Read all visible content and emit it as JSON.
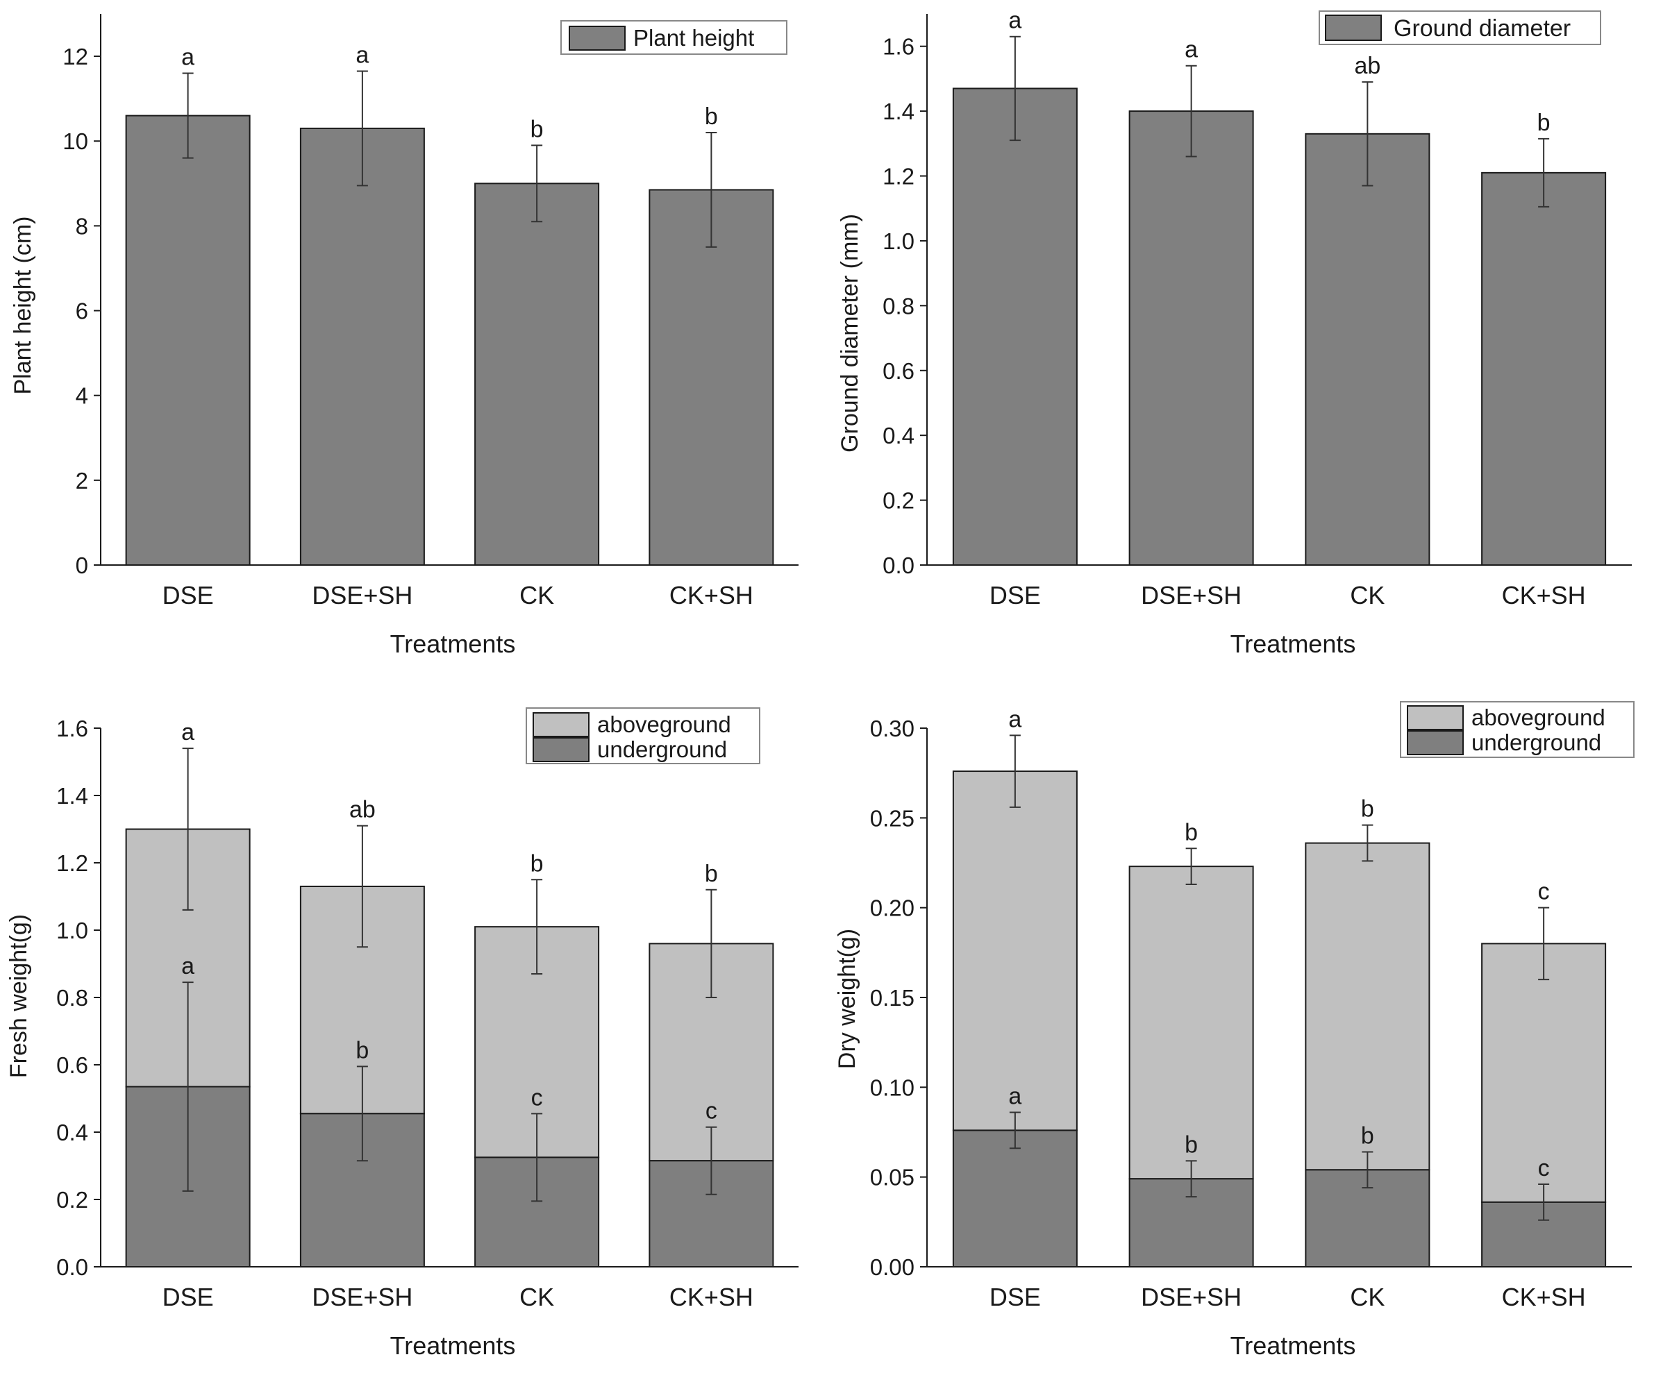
{
  "colors": {
    "bar_single": "#808080",
    "underground": "#7f7f7f",
    "aboveground": "#c0c0c0",
    "axis": "#1a1a1a",
    "error_bar": "#333333"
  },
  "chart_data": [
    {
      "id": "plant-height",
      "type": "bar",
      "title": "",
      "categories": [
        "DSE",
        "DSE+SH",
        "CK",
        "CK+SH"
      ],
      "xlabel": "Treatments",
      "ylabel": "Plant height (cm)",
      "ylim": [
        0,
        13
      ],
      "yticks": [
        0,
        2,
        4,
        6,
        8,
        10,
        12
      ],
      "ytick_labels": [
        "0",
        "2",
        "4",
        "6",
        "8",
        "10",
        "12"
      ],
      "legend_position": "top-right",
      "series": [
        {
          "name": "Plant height",
          "values": [
            10.6,
            10.3,
            9.0,
            8.85
          ],
          "errors": [
            1.0,
            1.35,
            0.9,
            1.35
          ],
          "letters": [
            "a",
            "a",
            "b",
            "b"
          ]
        }
      ]
    },
    {
      "id": "ground-diameter",
      "type": "bar",
      "title": "",
      "categories": [
        "DSE",
        "DSE+SH",
        "CK",
        "CK+SH"
      ],
      "xlabel": "Treatments",
      "ylabel": "Ground diameter (mm)",
      "ylim": [
        0,
        1.7
      ],
      "yticks": [
        0,
        0.2,
        0.4,
        0.6,
        0.8,
        1.0,
        1.2,
        1.4,
        1.6
      ],
      "ytick_labels": [
        "0.0",
        "0.2",
        "0.4",
        "0.6",
        "0.8",
        "1.0",
        "1.2",
        "1.4",
        "1.6"
      ],
      "legend_position": "top-right",
      "series": [
        {
          "name": "Ground diameter",
          "values": [
            1.47,
            1.4,
            1.33,
            1.21
          ],
          "errors": [
            0.16,
            0.14,
            0.16,
            0.105
          ],
          "letters": [
            "a",
            "a",
            "ab",
            "b"
          ]
        }
      ]
    },
    {
      "id": "fresh-weight",
      "type": "bar",
      "stacked": true,
      "title": "",
      "categories": [
        "DSE",
        "DSE+SH",
        "CK",
        "CK+SH"
      ],
      "xlabel": "Treatments",
      "ylabel": "Fresh weight(g)",
      "ylim": [
        0,
        1.6
      ],
      "yticks": [
        0,
        0.2,
        0.4,
        0.6,
        0.8,
        1.0,
        1.2,
        1.4,
        1.6
      ],
      "ytick_labels": [
        "0.0",
        "0.2",
        "0.4",
        "0.6",
        "0.8",
        "1.0",
        "1.2",
        "1.4",
        "1.6"
      ],
      "legend_position": "top-right",
      "series": [
        {
          "name": "underground",
          "values": [
            0.535,
            0.455,
            0.325,
            0.315
          ],
          "errors": [
            0.31,
            0.14,
            0.13,
            0.1
          ],
          "letters": [
            "a",
            "b",
            "c",
            "c"
          ]
        },
        {
          "name": "aboveground",
          "totals": [
            1.3,
            1.13,
            1.01,
            0.96
          ],
          "errors": [
            0.24,
            0.18,
            0.14,
            0.16
          ],
          "letters": [
            "a",
            "ab",
            "b",
            "b"
          ]
        }
      ]
    },
    {
      "id": "dry-weight",
      "type": "bar",
      "stacked": true,
      "title": "",
      "categories": [
        "DSE",
        "DSE+SH",
        "CK",
        "CK+SH"
      ],
      "xlabel": "Treatments",
      "ylabel": "Dry weight(g)",
      "ylim": [
        0,
        0.3
      ],
      "yticks": [
        0,
        0.05,
        0.1,
        0.15,
        0.2,
        0.25,
        0.3
      ],
      "ytick_labels": [
        "0.00",
        "0.05",
        "0.10",
        "0.15",
        "0.20",
        "0.25",
        "0.30"
      ],
      "legend_position": "top-right",
      "series": [
        {
          "name": "underground",
          "values": [
            0.076,
            0.049,
            0.054,
            0.036
          ],
          "errors": [
            0.01,
            0.01,
            0.01,
            0.01
          ],
          "letters": [
            "a",
            "b",
            "b",
            "c"
          ]
        },
        {
          "name": "aboveground",
          "totals": [
            0.276,
            0.223,
            0.236,
            0.18
          ],
          "errors": [
            0.02,
            0.01,
            0.01,
            0.02
          ],
          "letters": [
            "a",
            "b",
            "b",
            "c"
          ]
        }
      ]
    }
  ]
}
